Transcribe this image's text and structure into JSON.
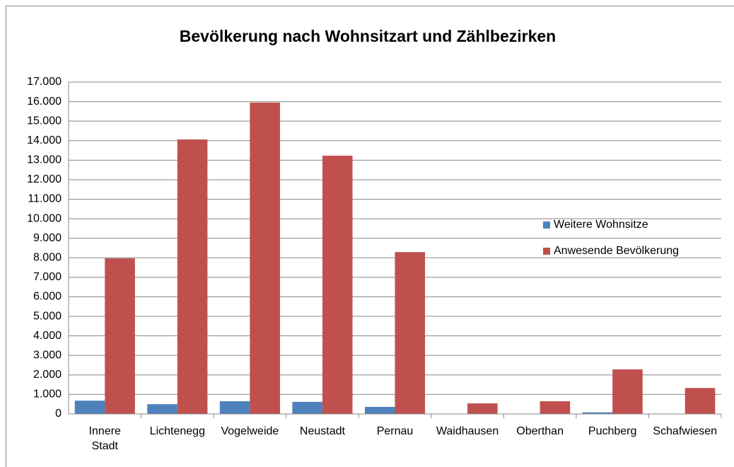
{
  "chart_data": {
    "type": "bar",
    "title": "Bevölkerung nach Wohnsitzart und Zählbezirken",
    "categories": [
      "Innere\nStadt",
      "Lichtenegg",
      "Vogelweide",
      "Neustadt",
      "Pernau",
      "Waidhausen",
      "Oberthan",
      "Puchberg",
      "Schafwiesen"
    ],
    "series": [
      {
        "name": "Weitere Wohnsitze",
        "color": "#4f81bd",
        "values": [
          680,
          500,
          650,
          620,
          360,
          10,
          0,
          80,
          0
        ]
      },
      {
        "name": "Anwesende Bevölkerung",
        "color": "#c0504d",
        "values": [
          7970,
          14060,
          15950,
          13230,
          8290,
          540,
          650,
          2280,
          1330
        ]
      }
    ],
    "ylim": [
      0,
      17000
    ],
    "yticks": [
      0,
      {
        "value": 1000,
        "label": "1.000"
      },
      {
        "value": 2000,
        "label": "2.000"
      },
      {
        "value": 3000,
        "label": "3.000"
      },
      {
        "value": 4000,
        "label": "4.000"
      },
      {
        "value": 5000,
        "label": "5.000"
      },
      {
        "value": 6000,
        "label": "6.000"
      },
      {
        "value": 7000,
        "label": "7.000"
      },
      {
        "value": 8000,
        "label": "8.000"
      },
      {
        "value": 9000,
        "label": "9.000"
      },
      {
        "value": 10000,
        "label": "10.000"
      },
      {
        "value": 11000,
        "label": "11.000"
      },
      {
        "value": 12000,
        "label": "12.000"
      },
      {
        "value": 13000,
        "label": "13.000"
      },
      {
        "value": 14000,
        "label": "14.000"
      },
      {
        "value": 15000,
        "label": "15.000"
      },
      {
        "value": 16000,
        "label": "16.000"
      },
      {
        "value": 17000,
        "label": "17.000"
      }
    ],
    "grid": true,
    "legend": "right"
  }
}
